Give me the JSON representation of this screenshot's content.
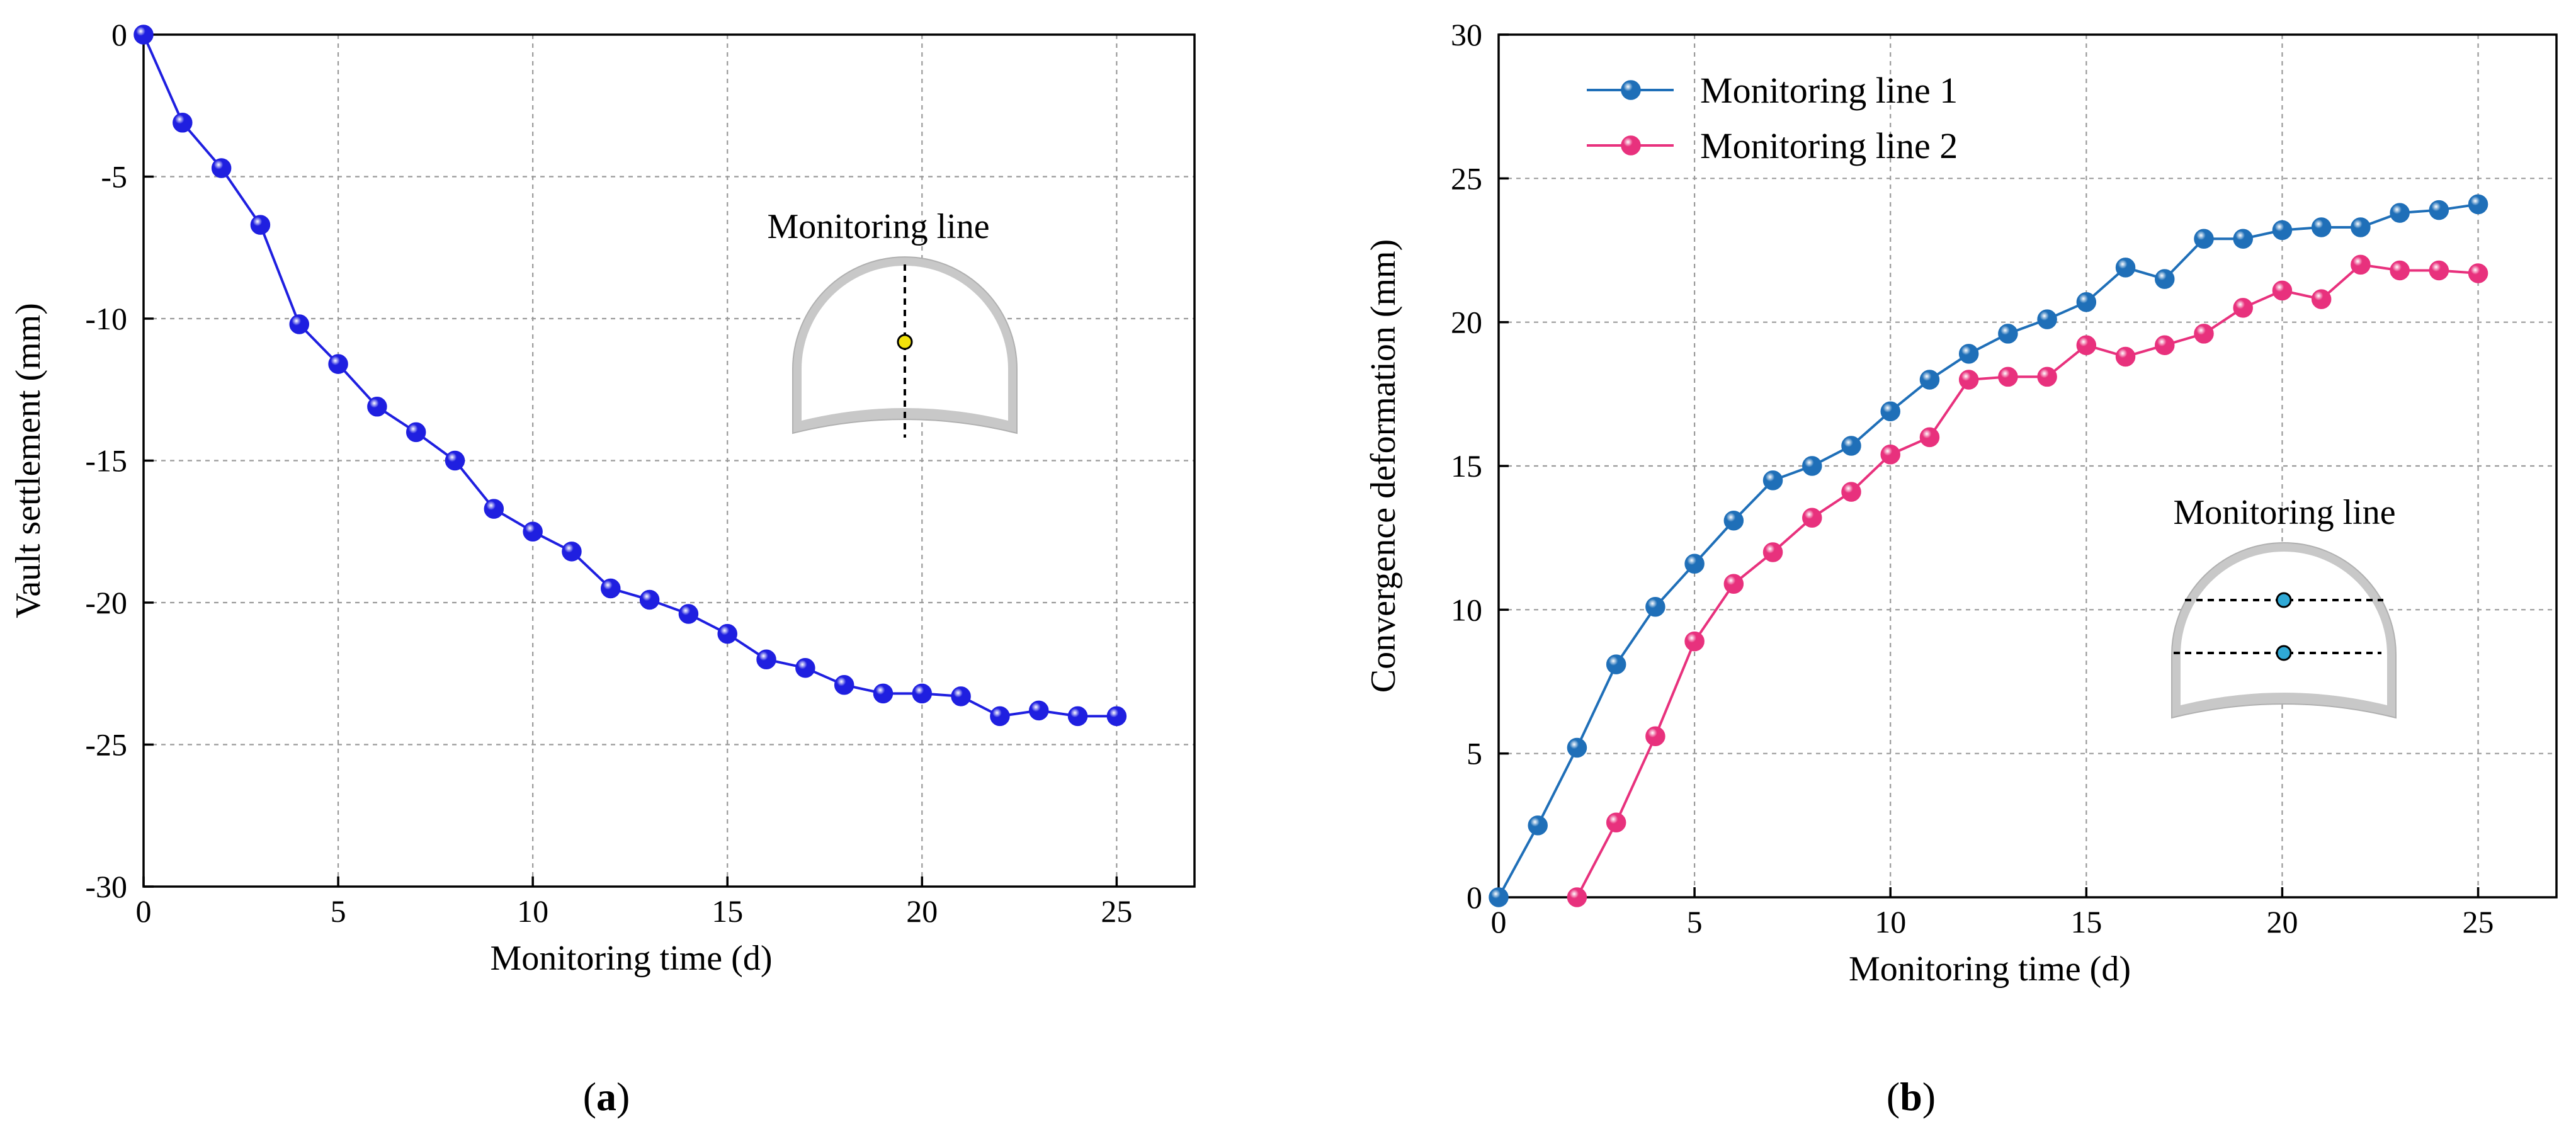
{
  "chart_data": [
    {
      "id": "a",
      "type": "line",
      "caption": "a",
      "xlabel": "Monitoring time (d)",
      "ylabel": "Vault settlement (mm)",
      "xlim": [
        0,
        27
      ],
      "ylim": [
        -30,
        0
      ],
      "xticks": [
        0,
        5,
        10,
        15,
        20,
        25
      ],
      "yticks": [
        0,
        -5,
        -10,
        -15,
        -20,
        -25,
        -30
      ],
      "grid": true,
      "inset_title": "Monitoring line",
      "series": [
        {
          "name": "Vault settlement",
          "color": "#1f1fe0",
          "x": [
            0,
            1,
            2,
            3,
            4,
            5,
            6,
            7,
            8,
            9,
            10,
            11,
            12,
            13,
            14,
            15,
            16,
            17,
            18,
            19,
            20,
            21,
            22,
            23,
            24,
            25
          ],
          "y": [
            0,
            -3.1,
            -4.7,
            -6.7,
            -10.2,
            -11.6,
            -13.1,
            -14.0,
            -15.0,
            -16.7,
            -17.5,
            -18.2,
            -19.5,
            -19.9,
            -20.4,
            -21.1,
            -22.0,
            -22.3,
            -22.9,
            -23.2,
            -23.2,
            -23.3,
            -24.0,
            -23.8,
            -24.0,
            -24.0
          ]
        }
      ]
    },
    {
      "id": "b",
      "type": "line",
      "caption": "b",
      "xlabel": "Monitoring time (d)",
      "ylabel": "Convergence deformation (mm)",
      "xlim": [
        0,
        27
      ],
      "ylim": [
        0,
        30
      ],
      "xticks": [
        0,
        5,
        10,
        15,
        20,
        25
      ],
      "yticks": [
        0,
        5,
        10,
        15,
        20,
        25,
        30
      ],
      "grid": true,
      "legend_position": "top-left",
      "inset_title": "Monitoring line",
      "series": [
        {
          "name": "Monitoring line 1",
          "color": "#1f6fb8",
          "x": [
            0,
            1,
            2,
            3,
            4,
            5,
            6,
            7,
            8,
            9,
            10,
            11,
            12,
            13,
            14,
            15,
            16,
            17,
            18,
            19,
            20,
            21,
            22,
            23,
            24,
            25
          ],
          "y": [
            0,
            2.5,
            5.2,
            8.1,
            10.1,
            11.6,
            13.1,
            14.5,
            15.0,
            15.7,
            16.9,
            18.0,
            18.9,
            19.6,
            20.1,
            20.7,
            21.9,
            21.5,
            22.9,
            22.9,
            23.2,
            23.3,
            23.3,
            23.8,
            23.9,
            24.1
          ]
        },
        {
          "name": "Monitoring line 2",
          "color": "#e8317d",
          "x": [
            2,
            3,
            4,
            5,
            6,
            7,
            8,
            9,
            10,
            11,
            12,
            13,
            14,
            15,
            16,
            17,
            18,
            19,
            20,
            21,
            22,
            23,
            24,
            25
          ],
          "y": [
            0,
            2.6,
            5.6,
            8.9,
            10.9,
            12.0,
            13.2,
            14.1,
            15.4,
            16.0,
            18.0,
            18.1,
            18.1,
            19.2,
            18.8,
            19.2,
            19.6,
            20.5,
            21.1,
            20.8,
            22.0,
            21.8,
            21.8,
            21.7
          ]
        }
      ]
    }
  ],
  "colors": {
    "inset_fill": "#c8c8c8",
    "inset_stroke": "#b0b0b0",
    "marker_yellow": "#f2e20a",
    "marker_cyan": "#2fa9d6"
  }
}
